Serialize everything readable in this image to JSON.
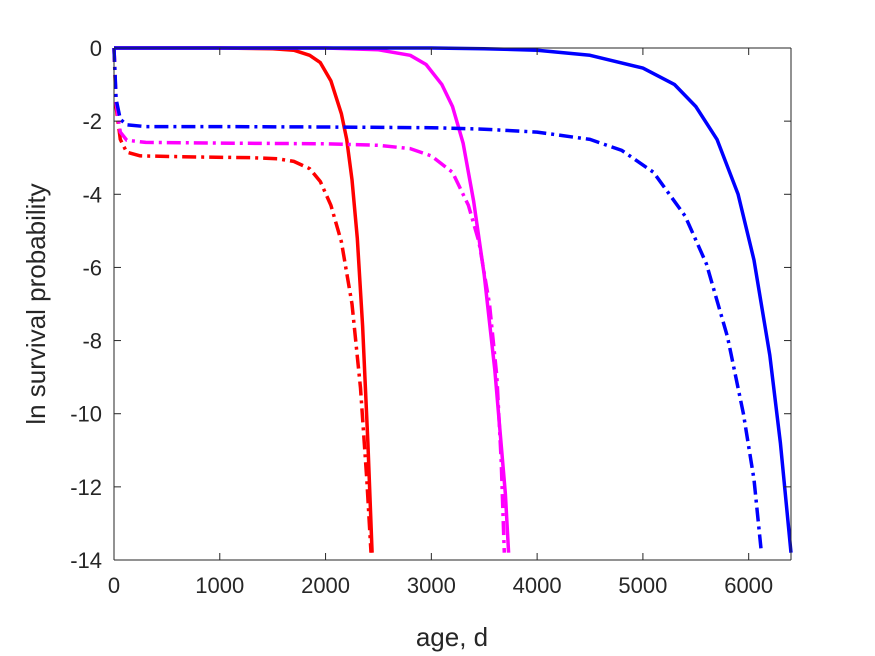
{
  "chart_data": {
    "type": "line",
    "title": "",
    "xlabel": "age, d",
    "ylabel": "ln survival probability",
    "xlim": [
      0,
      6400
    ],
    "ylim": [
      -14,
      0
    ],
    "xticks": [
      0,
      1000,
      2000,
      3000,
      4000,
      5000,
      6000
    ],
    "yticks": [
      0,
      -2,
      -4,
      -6,
      -8,
      -10,
      -12,
      -14
    ],
    "grid": false,
    "legend": "none",
    "series": [
      {
        "color": "#ff0000",
        "style": "solid",
        "points": [
          [
            0,
            0
          ],
          [
            500,
            0
          ],
          [
            1000,
            0
          ],
          [
            1500,
            -0.02
          ],
          [
            1700,
            -0.06
          ],
          [
            1850,
            -0.2
          ],
          [
            1950,
            -0.4
          ],
          [
            2050,
            -0.9
          ],
          [
            2150,
            -1.8
          ],
          [
            2200,
            -2.5
          ],
          [
            2250,
            -3.6
          ],
          [
            2300,
            -5.2
          ],
          [
            2350,
            -7.6
          ],
          [
            2400,
            -10.8
          ],
          [
            2440,
            -13.8
          ]
        ]
      },
      {
        "color": "#ff0000",
        "style": "dashdot",
        "points": [
          [
            0,
            0
          ],
          [
            20,
            -1.6
          ],
          [
            60,
            -2.5
          ],
          [
            120,
            -2.85
          ],
          [
            250,
            -2.95
          ],
          [
            800,
            -2.98
          ],
          [
            1300,
            -3.0
          ],
          [
            1550,
            -3.03
          ],
          [
            1700,
            -3.1
          ],
          [
            1850,
            -3.3
          ],
          [
            1950,
            -3.65
          ],
          [
            2050,
            -4.3
          ],
          [
            2150,
            -5.3
          ],
          [
            2250,
            -7.0
          ],
          [
            2330,
            -9.3
          ],
          [
            2390,
            -11.8
          ],
          [
            2430,
            -13.8
          ]
        ]
      },
      {
        "color": "#ff00ff",
        "style": "solid",
        "points": [
          [
            0,
            0
          ],
          [
            1000,
            0
          ],
          [
            2000,
            0
          ],
          [
            2500,
            -0.05
          ],
          [
            2800,
            -0.2
          ],
          [
            2950,
            -0.45
          ],
          [
            3100,
            -1.0
          ],
          [
            3200,
            -1.6
          ],
          [
            3300,
            -2.6
          ],
          [
            3400,
            -4.2
          ],
          [
            3500,
            -6.2
          ],
          [
            3600,
            -8.8
          ],
          [
            3700,
            -12.2
          ],
          [
            3730,
            -13.8
          ]
        ]
      },
      {
        "color": "#ff00ff",
        "style": "dashdot",
        "points": [
          [
            0,
            0
          ],
          [
            20,
            -1.5
          ],
          [
            60,
            -2.3
          ],
          [
            120,
            -2.52
          ],
          [
            300,
            -2.58
          ],
          [
            1000,
            -2.6
          ],
          [
            2000,
            -2.62
          ],
          [
            2500,
            -2.66
          ],
          [
            2800,
            -2.75
          ],
          [
            3000,
            -2.95
          ],
          [
            3200,
            -3.4
          ],
          [
            3350,
            -4.3
          ],
          [
            3450,
            -5.3
          ],
          [
            3550,
            -7.0
          ],
          [
            3620,
            -9.0
          ],
          [
            3660,
            -11.3
          ],
          [
            3690,
            -13.8
          ]
        ]
      },
      {
        "color": "#0000ff",
        "style": "solid",
        "points": [
          [
            0,
            0
          ],
          [
            2000,
            0
          ],
          [
            3000,
            0
          ],
          [
            3500,
            -0.02
          ],
          [
            4000,
            -0.06
          ],
          [
            4500,
            -0.2
          ],
          [
            5000,
            -0.55
          ],
          [
            5300,
            -1.0
          ],
          [
            5500,
            -1.6
          ],
          [
            5700,
            -2.5
          ],
          [
            5900,
            -4.0
          ],
          [
            6050,
            -5.8
          ],
          [
            6200,
            -8.4
          ],
          [
            6300,
            -10.8
          ],
          [
            6400,
            -13.8
          ]
        ]
      },
      {
        "color": "#0000ff",
        "style": "dashdot",
        "points": [
          [
            0,
            0
          ],
          [
            20,
            -1.4
          ],
          [
            60,
            -1.95
          ],
          [
            120,
            -2.1
          ],
          [
            300,
            -2.15
          ],
          [
            1000,
            -2.15
          ],
          [
            2000,
            -2.16
          ],
          [
            3000,
            -2.18
          ],
          [
            3500,
            -2.22
          ],
          [
            4000,
            -2.3
          ],
          [
            4500,
            -2.5
          ],
          [
            4800,
            -2.8
          ],
          [
            5100,
            -3.4
          ],
          [
            5400,
            -4.6
          ],
          [
            5600,
            -5.9
          ],
          [
            5800,
            -7.9
          ],
          [
            5950,
            -10.0
          ],
          [
            6050,
            -11.8
          ],
          [
            6120,
            -13.8
          ]
        ]
      }
    ]
  }
}
